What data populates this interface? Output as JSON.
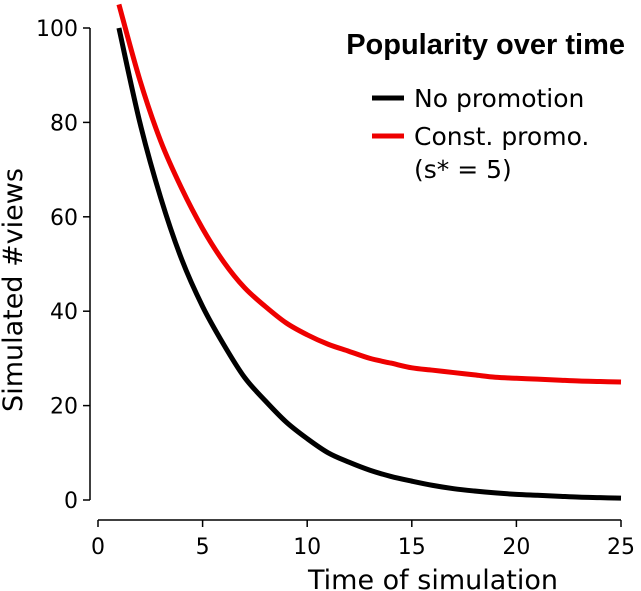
{
  "chart_data": {
    "type": "line",
    "title": "Popularity over time",
    "xlabel": "Time of simulation",
    "ylabel": "Simulated #views",
    "xlim": [
      0,
      25
    ],
    "ylim": [
      0,
      100
    ],
    "xticks": [
      0,
      5,
      10,
      15,
      20,
      25
    ],
    "yticks": [
      0,
      20,
      40,
      60,
      80,
      100
    ],
    "grid": false,
    "legend_position": "top-right",
    "series": [
      {
        "name": "No promotion",
        "color": "#000000",
        "x": [
          1,
          2,
          3,
          4,
          5,
          6,
          7,
          8,
          9,
          10,
          11,
          12,
          13,
          14,
          15,
          16,
          17,
          18,
          19,
          20,
          21,
          22,
          23,
          24,
          25
        ],
        "y": [
          100,
          80,
          64,
          51,
          41,
          33,
          26,
          21,
          16.5,
          13,
          10,
          8,
          6.3,
          5,
          4,
          3.1,
          2.4,
          1.9,
          1.5,
          1.2,
          1.0,
          0.8,
          0.6,
          0.5,
          0.4
        ]
      },
      {
        "name": "Const. promo.",
        "name_line2": "(s* = 5)",
        "color": "#ee0000",
        "x": [
          1,
          2,
          3,
          4,
          5,
          6,
          7,
          8,
          9,
          10,
          11,
          12,
          13,
          14,
          15,
          16,
          17,
          18,
          19,
          20,
          21,
          22,
          23,
          24,
          25
        ],
        "y": [
          105,
          89,
          76,
          66,
          57.5,
          50.5,
          45,
          41,
          37.5,
          35,
          33,
          31.5,
          30,
          29,
          28,
          27.5,
          27,
          26.5,
          26,
          25.8,
          25.6,
          25.4,
          25.2,
          25.1,
          25
        ]
      }
    ]
  }
}
